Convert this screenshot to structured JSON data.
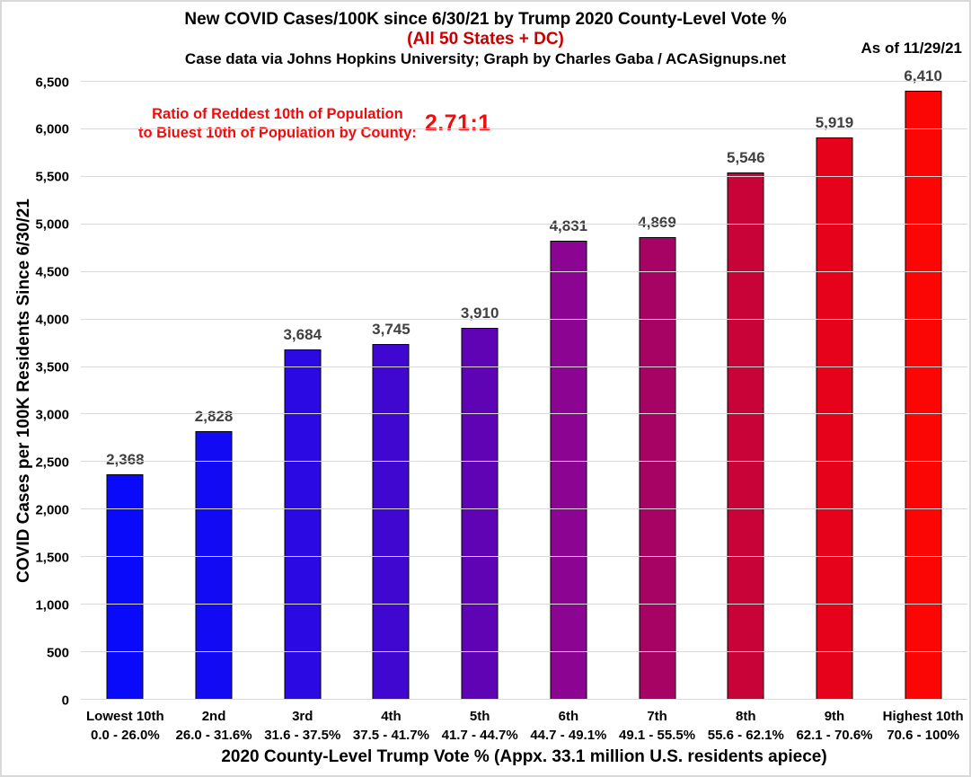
{
  "header": {
    "title": "New COVID Cases/100K since 6/30/21 by Trump 2020 County-Level Vote %",
    "subtitle": "(All 50 States + DC)",
    "subtitle_color": "#c80000",
    "attribution": "Case data via Johns Hopkins University; Graph by Charles Gaba / ACASignups.net",
    "as_of": "As of 11/29/21"
  },
  "annotation": {
    "line1": "Ratio of Reddest 10th of Population",
    "line2": "to Bluest 10th of Population by County:",
    "ratio": "2.71:1",
    "color": "#ee0c0c"
  },
  "chart_data": {
    "type": "bar",
    "title": "New COVID Cases/100K since 6/30/21 by Trump 2020 County-Level Vote %",
    "xlabel": "2020 County-Level Trump Vote % (Appx. 33.1 million U.S. residents apiece)",
    "ylabel": "COVID Cases per 100K Residents Since 6/30/21",
    "ylim": [
      0,
      6500
    ],
    "ytick_step": 500,
    "grid": true,
    "ytick_values": [
      0,
      500,
      1000,
      1500,
      2000,
      2500,
      3000,
      3500,
      4000,
      4500,
      5000,
      5500,
      6000,
      6500
    ],
    "ytick_labels": [
      "0",
      "500",
      "1,000",
      "1,500",
      "2,000",
      "2,500",
      "3,000",
      "3,500",
      "4,000",
      "4,500",
      "5,000",
      "5,500",
      "6,000",
      "6,500"
    ],
    "categories": [
      "Lowest 10th",
      "2nd",
      "3rd",
      "4th",
      "5th",
      "6th",
      "7th",
      "8th",
      "9th",
      "Highest 10th"
    ],
    "category_ranges": [
      "0.0 - 26.0%",
      "26.0 - 31.6%",
      "31.6 - 37.5%",
      "37.5 - 41.7%",
      "41.7 - 44.7%",
      "44.7 - 49.1%",
      "49.1 - 55.5%",
      "55.6 - 62.1%",
      "62.1 - 70.6%",
      "70.6 - 100%"
    ],
    "values": [
      2368,
      2828,
      3684,
      3745,
      3910,
      4831,
      4869,
      5546,
      5919,
      6410
    ],
    "value_labels": [
      "2,368",
      "2,828",
      "3,684",
      "3,745",
      "3,910",
      "4,831",
      "4,869",
      "5,546",
      "5,919",
      "6,410"
    ],
    "bar_colors": [
      "#0a0afb",
      "#130af4",
      "#2a09e3",
      "#3f07cf",
      "#5e04b5",
      "#8b0492",
      "#a60365",
      "#c70338",
      "#e6021a",
      "#fb0505"
    ],
    "gridline_color": "#d9d9d9",
    "value_label_color": "#404040"
  }
}
